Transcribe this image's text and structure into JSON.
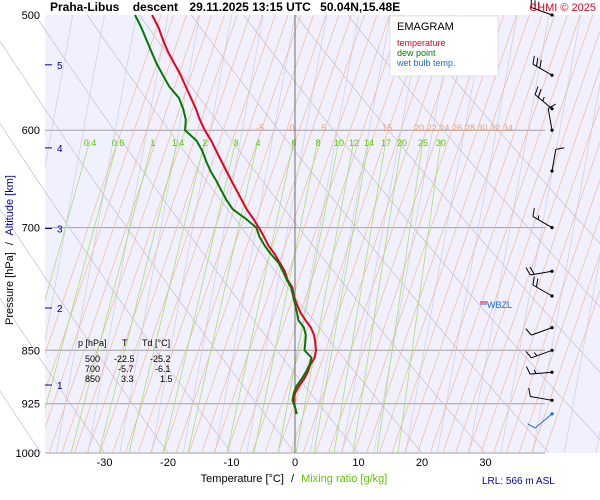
{
  "header": {
    "station": "Praha-Libus",
    "mode": "descent",
    "datetime": "29.11.2025 13:15 UTC",
    "coords": "50.04N,15.48E",
    "copyright": "CHMI © 2025"
  },
  "legend": {
    "title": "EMAGRAM",
    "temperature": "temperature",
    "dew_point": "dew point",
    "wet_bulb": "wet bulb temp."
  },
  "axes": {
    "ylabel_pressure": "Pressure [hPa]",
    "ylabel_sep": "/",
    "ylabel_altitude": "Altitude [km]",
    "xlabel_temp": "Temperature [°C]",
    "xlabel_sep": "/",
    "xlabel_mixing": "Mixing ratio [g/kg]",
    "lrl": "LRL: 566 m ASL",
    "wbzl": "WBZL"
  },
  "table": {
    "headers": [
      "p [hPa]",
      "T",
      "Td [°C]"
    ],
    "rows": [
      [
        "500",
        "-22.5",
        "-25.2"
      ],
      [
        "700",
        "-5.7",
        "-6.1"
      ],
      [
        "850",
        "3.3",
        "1.5"
      ]
    ]
  },
  "chart_data": {
    "type": "line",
    "title": "Praha-Libus descent 29.11.2025 13:15 UTC 50.04N,15.48E",
    "xlabel": "Temperature [°C] / Mixing ratio [g/kg]",
    "ylabel": "Pressure [hPa] / Altitude [km]",
    "xlim": [
      -39,
      40
    ],
    "ylim": [
      1000,
      500
    ],
    "x_ticks": [
      -30,
      -20,
      -10,
      0,
      10,
      20,
      30
    ],
    "p_ticks": [
      500,
      600,
      700,
      850,
      925,
      1000
    ],
    "alt_ticks_km": [
      {
        "km": 1,
        "p": 898
      },
      {
        "km": 2,
        "p": 795
      },
      {
        "km": 3,
        "p": 701
      },
      {
        "km": 4,
        "p": 617
      },
      {
        "km": 5,
        "p": 541
      }
    ],
    "sat_mix_labels": [
      "-5",
      "0",
      "5",
      "15",
      "20",
      "22",
      "24",
      "26",
      "28",
      "30",
      "32",
      "34"
    ],
    "sat_mix_temps": [
      -5,
      0,
      5,
      15,
      20,
      22,
      24,
      26,
      28,
      30,
      32,
      34
    ],
    "mix_ratio_labels": [
      "0.4",
      "0.6",
      "1",
      "1.4",
      "2",
      "3",
      "4",
      "6",
      "8",
      "10",
      "12",
      "14",
      "17",
      "20",
      "25",
      "30"
    ],
    "series": [
      {
        "name": "temperature",
        "color": "#e8001c",
        "points": [
          [
            -22.5,
            500
          ],
          [
            -21.5,
            510
          ],
          [
            -20.8,
            520
          ],
          [
            -20.0,
            530
          ],
          [
            -19.0,
            540
          ],
          [
            -18.0,
            550
          ],
          [
            -17.2,
            560
          ],
          [
            -16.4,
            570
          ],
          [
            -15.6,
            580
          ],
          [
            -15.0,
            590
          ],
          [
            -14.2,
            600
          ],
          [
            -13.2,
            610
          ],
          [
            -12.4,
            620
          ],
          [
            -11.6,
            630
          ],
          [
            -10.8,
            640
          ],
          [
            -10.0,
            650
          ],
          [
            -9.2,
            660
          ],
          [
            -8.4,
            670
          ],
          [
            -7.6,
            680
          ],
          [
            -6.6,
            690
          ],
          [
            -5.7,
            700
          ],
          [
            -4.9,
            710
          ],
          [
            -4.2,
            720
          ],
          [
            -3.2,
            730
          ],
          [
            -2.4,
            740
          ],
          [
            -1.6,
            750
          ],
          [
            -1.2,
            760
          ],
          [
            -0.4,
            770
          ],
          [
            -0.2,
            780
          ],
          [
            0.3,
            790
          ],
          [
            0.8,
            800
          ],
          [
            1.6,
            810
          ],
          [
            2.5,
            820
          ],
          [
            3.0,
            830
          ],
          [
            3.2,
            840
          ],
          [
            3.3,
            850
          ],
          [
            3.1,
            860
          ],
          [
            2.4,
            870
          ],
          [
            2.0,
            880
          ],
          [
            1.4,
            890
          ],
          [
            0.6,
            900
          ],
          [
            0.0,
            910
          ],
          [
            -0.2,
            920
          ],
          [
            0.0,
            930
          ],
          [
            0.2,
            940
          ]
        ]
      },
      {
        "name": "dew point",
        "color": "#007a00",
        "points": [
          [
            -25.2,
            500
          ],
          [
            -24.2,
            510
          ],
          [
            -23.4,
            520
          ],
          [
            -22.6,
            530
          ],
          [
            -21.8,
            540
          ],
          [
            -20.8,
            550
          ],
          [
            -19.8,
            560
          ],
          [
            -18.3,
            570
          ],
          [
            -17.6,
            580
          ],
          [
            -17.2,
            590
          ],
          [
            -17.3,
            600
          ],
          [
            -15.5,
            610
          ],
          [
            -14.6,
            620
          ],
          [
            -14.0,
            630
          ],
          [
            -13.3,
            640
          ],
          [
            -12.4,
            650
          ],
          [
            -11.6,
            660
          ],
          [
            -10.8,
            670
          ],
          [
            -9.8,
            680
          ],
          [
            -7.8,
            690
          ],
          [
            -6.1,
            700
          ],
          [
            -5.6,
            710
          ],
          [
            -4.8,
            720
          ],
          [
            -3.8,
            730
          ],
          [
            -2.6,
            740
          ],
          [
            -1.9,
            750
          ],
          [
            -1.3,
            760
          ],
          [
            -0.6,
            770
          ],
          [
            -0.3,
            780
          ],
          [
            0.0,
            790
          ],
          [
            0.3,
            800
          ],
          [
            0.5,
            810
          ],
          [
            1.4,
            820
          ],
          [
            1.7,
            830
          ],
          [
            1.6,
            840
          ],
          [
            1.5,
            850
          ],
          [
            2.6,
            860
          ],
          [
            2.3,
            870
          ],
          [
            1.7,
            880
          ],
          [
            1.0,
            890
          ],
          [
            0.2,
            900
          ],
          [
            -0.2,
            910
          ],
          [
            -0.4,
            920
          ],
          [
            0.0,
            930
          ],
          [
            0.3,
            940
          ]
        ]
      }
    ],
    "wind_barbs": [
      {
        "p": 500,
        "dir": 290,
        "speed_kt": 30
      },
      {
        "p": 550,
        "dir": 300,
        "speed_kt": 30
      },
      {
        "p": 580,
        "dir": 310,
        "speed_kt": 25
      },
      {
        "p": 600,
        "dir": 350,
        "speed_kt": 10
      },
      {
        "p": 640,
        "dir": 10,
        "speed_kt": 10
      },
      {
        "p": 700,
        "dir": 300,
        "speed_kt": 15
      },
      {
        "p": 750,
        "dir": 260,
        "speed_kt": 20
      },
      {
        "p": 780,
        "dir": 300,
        "speed_kt": 20
      },
      {
        "p": 820,
        "dir": 250,
        "speed_kt": 10
      },
      {
        "p": 850,
        "dir": 250,
        "speed_kt": 15
      },
      {
        "p": 880,
        "dir": 265,
        "speed_kt": 15
      },
      {
        "p": 920,
        "dir": 280,
        "speed_kt": 10
      },
      {
        "p": 940,
        "dir": 230,
        "speed_kt": 10
      }
    ]
  }
}
